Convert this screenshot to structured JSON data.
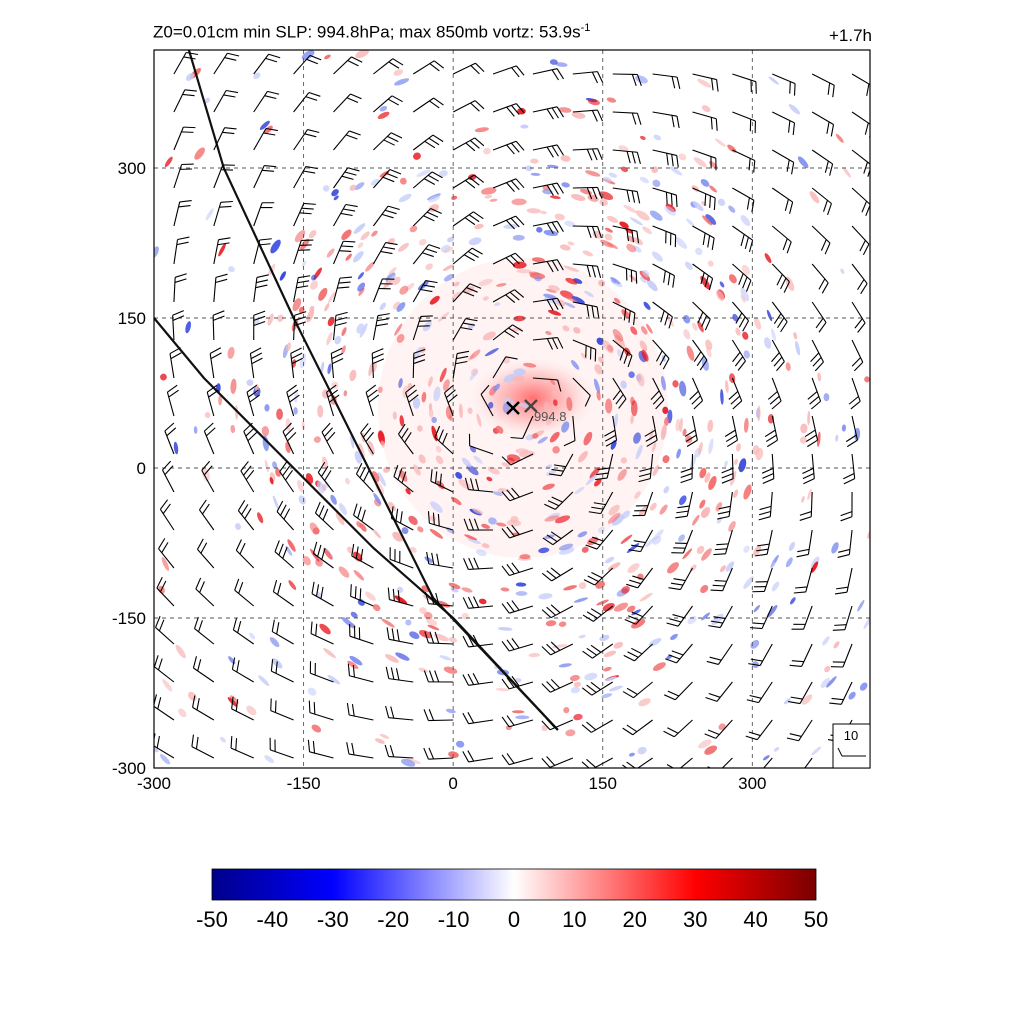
{
  "title": {
    "main": "Z0=0.01cm  min SLP: 994.8hPa; max 850mb vortz:  53.9s",
    "exponent": "-1",
    "time": "+1.7h"
  },
  "chart_data": {
    "type": "heatmap",
    "variable": "850mb vorticity with wind barbs",
    "x_ticks": [
      "-300",
      "-150",
      "0",
      "150",
      "300"
    ],
    "y_ticks": [
      "300",
      "150",
      "0",
      "-150",
      "-300"
    ],
    "xlim": [
      -300,
      418
    ],
    "ylim": [
      -300,
      418
    ],
    "grid": true,
    "colormap": {
      "low": "#00008b",
      "mid": "#ffffff",
      "high": "#7a0000"
    },
    "colorbar": {
      "ticks": [
        "-50",
        "-40",
        "-30",
        "-20",
        "-10",
        "0",
        "10",
        "20",
        "30",
        "40",
        "50"
      ],
      "range": [
        -50,
        50
      ]
    },
    "min_slp_marker": {
      "x": 60,
      "y": 60,
      "label": ""
    },
    "min_slp_label_marker": {
      "x": 78,
      "y": 62,
      "label": "994.8"
    },
    "reference_barb": {
      "label": "10"
    },
    "storm_center": {
      "x": 70,
      "y": 60
    },
    "coastlines": [
      [
        [
          -265,
          418
        ],
        [
          -230,
          300
        ],
        [
          -160,
          150
        ],
        [
          -95,
          20
        ],
        [
          -20,
          -130
        ],
        [
          105,
          -262
        ]
      ],
      [
        [
          -300,
          150
        ],
        [
          -250,
          90
        ],
        [
          -170,
          10
        ],
        [
          -80,
          -80
        ],
        [
          0,
          -150
        ],
        [
          105,
          -262
        ]
      ]
    ]
  }
}
